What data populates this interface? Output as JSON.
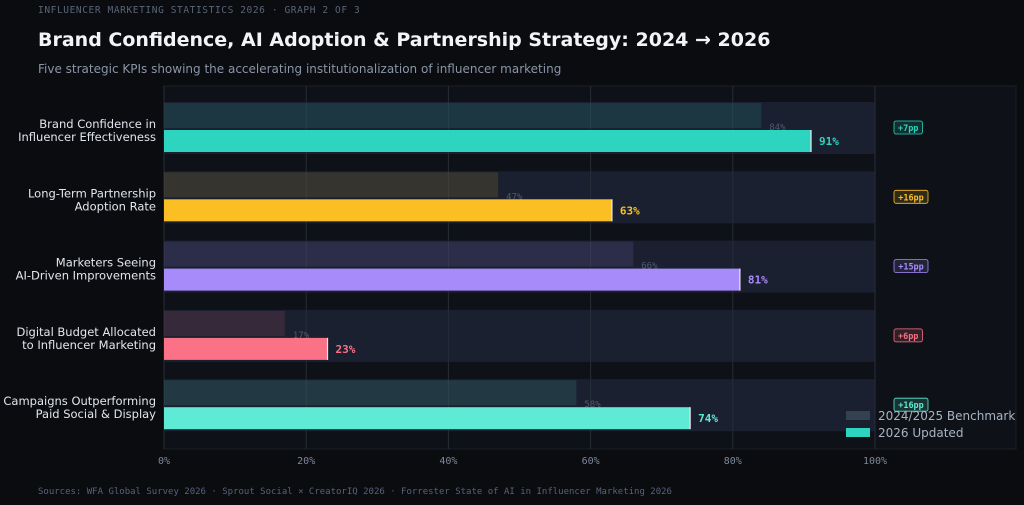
{
  "header": {
    "kicker": "INFLUENCER MARKETING STATISTICS 2026  ·  GRAPH 2 OF 3",
    "title": "Brand Confidence, AI Adoption & Partnership Strategy: 2024 → 2026",
    "subtitle": "Five strategic KPIs showing the accelerating institutionalization of influencer marketing"
  },
  "footer": {
    "sources": "Sources: WFA Global Survey 2026  ·  Sprout Social × CreatorIQ 2026  ·  Forrester State of AI in Influencer Marketing 2026"
  },
  "chart_data": {
    "type": "bar",
    "orientation": "horizontal",
    "categories": [
      [
        "Brand Confidence in",
        "Influencer Effectiveness"
      ],
      [
        "Long-Term Partnership",
        "Adoption Rate"
      ],
      [
        "Marketers Seeing",
        "AI-Driven Improvements"
      ],
      [
        "Digital Budget Allocated",
        "to Influencer Marketing"
      ],
      [
        "Campaigns Outperforming",
        "Paid Social & Display"
      ]
    ],
    "series": [
      {
        "name": "2024/2025 Benchmark",
        "values": [
          84,
          47,
          66,
          17,
          58
        ],
        "value_labels": [
          "84%",
          "47%",
          "66%",
          "17%",
          "58%"
        ]
      },
      {
        "name": "2026 Updated",
        "values": [
          91,
          63,
          81,
          23,
          74
        ],
        "value_labels": [
          "91%",
          "63%",
          "81%",
          "23%",
          "74%"
        ]
      }
    ],
    "change_badges": [
      "+7pp",
      "+16pp",
      "+15pp",
      "+6pp",
      "+16pp"
    ],
    "bar_colors": [
      "#2dd4bf",
      "#fbbf24",
      "#a78bfa",
      "#fb7185",
      "#5eead4"
    ],
    "xlim": [
      0,
      100
    ],
    "xticks": [
      0,
      20,
      40,
      60,
      80,
      100
    ],
    "xtick_labels": [
      "0%",
      "20%",
      "40%",
      "60%",
      "80%",
      "100%"
    ],
    "grid": true,
    "legend_position": "bottom-right"
  },
  "legend": {
    "items": [
      {
        "label": "2024/2025 Benchmark",
        "color": "#34414f"
      },
      {
        "label": "2026 Updated",
        "color": "#2dd4bf"
      }
    ]
  }
}
